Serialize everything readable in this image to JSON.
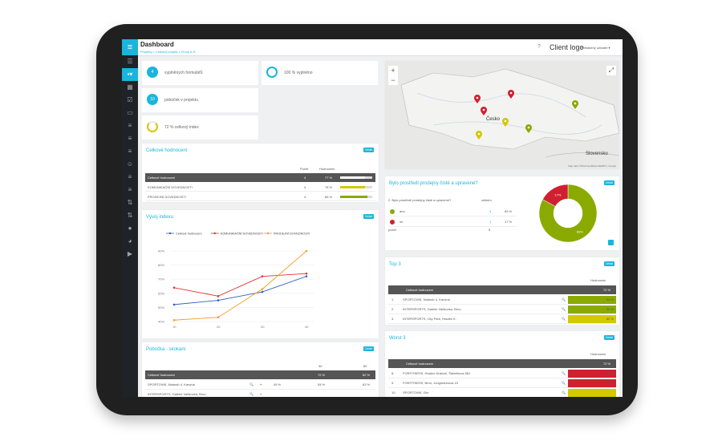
{
  "header": {
    "title": "Dashboard",
    "breadcrumb": "Projekty > Celkový projekt > Firmy A.S.",
    "help": "?",
    "logo": "Client logo",
    "user": "Přihlášený uživatel ▾"
  },
  "stats": [
    {
      "value": "4",
      "label": "vyplněných formulářů"
    },
    {
      "value": "",
      "label": "100 % vyplněno"
    },
    {
      "value": "10",
      "label": "poboček v projektu"
    },
    {
      "value": "",
      "label": "72 % celkový index"
    }
  ],
  "overall": {
    "title": "Celkové hodnocení",
    "detail": "Detail",
    "col_count": "Počet",
    "col_score": "Hodnocení",
    "rows": [
      {
        "label": "Celkové hodnocení",
        "count": "4",
        "pct": "77 %",
        "fill": 0.77,
        "color": "#ffffff"
      },
      {
        "label": "KOMUNIKAČNÍ DOVEDNOSTI",
        "count": "4",
        "pct": "78 %",
        "fill": 0.78,
        "color": "#d4c800"
      },
      {
        "label": "PRODEJNÍ DOVEDNOSTI",
        "count": "4",
        "pct": "86 %",
        "fill": 0.86,
        "color": "#8aaa00"
      }
    ]
  },
  "index_chart": {
    "title": "Vývoj indexu",
    "detail": "Detail",
    "chart_data": {
      "type": "line",
      "x": [
        "10",
        "20",
        "30",
        "40"
      ],
      "ylim": [
        40,
        90
      ],
      "yticks": [
        "40%",
        "50%",
        "60%",
        "70%",
        "80%",
        "90%"
      ],
      "series": [
        {
          "name": "Celkové hodnocení",
          "color": "#3060c0",
          "values": [
            52,
            55,
            61,
            72
          ]
        },
        {
          "name": "KOMUNIKAČNÍ DOVEDNOSTI",
          "color": "#e03030",
          "values": [
            64,
            58,
            72,
            74
          ]
        },
        {
          "name": "PRODEJNÍ DOVEDNOSTI",
          "color": "#f0a020",
          "values": [
            41,
            43,
            63,
            90
          ]
        }
      ]
    }
  },
  "branches": {
    "title": "Pobočka - skokani",
    "detail": "Detail",
    "cols": [
      "40",
      "80"
    ],
    "head": {
      "label": "Celkové hodnocení",
      "v1": "72 %",
      "v2": "62 %"
    },
    "rows": [
      {
        "label": "SPORTOVNÍ, Nádraží 4, Karviná",
        "delta": "49 %",
        "v1": "54 %",
        "v2": "63 %"
      },
      {
        "label": "INTERSPORTS, Galerie Vaňkovka, Brno",
        "delta": "",
        "v1": "",
        "v2": ""
      }
    ]
  },
  "map": {
    "label_cz": "Česko",
    "label_sk": "Slovensko",
    "zoom_in": "+",
    "zoom_out": "−",
    "fullscreen": "⤢",
    "attribution": "Map data ©2019 GeoBasis-DE/BKG, Google"
  },
  "clean": {
    "title": "Bylo prostředí prodejny čisté a upravené?",
    "detail": "Detail",
    "question": "2. Bylo prostředí prodejny čisté a upravené?",
    "col_total": "celkem",
    "rows": [
      {
        "label": "ano",
        "count": "4",
        "pct": "83 %",
        "color": "#8aaa00"
      },
      {
        "label": "ne",
        "count": "1",
        "pct": "17 %",
        "color": "#d02030"
      }
    ],
    "sum_label": "počet",
    "sum_value": "5",
    "chart_data": {
      "type": "pie",
      "labels": [
        "ano",
        "ne"
      ],
      "values": [
        83,
        17
      ],
      "colors": [
        "#8aaa00",
        "#d02030"
      ],
      "slice_labels": [
        "83%",
        "17%"
      ]
    }
  },
  "top": {
    "title": "Top 3",
    "detail": "Detail",
    "col": "Hodnocení",
    "head": {
      "label": "Celkové hodnocení",
      "value": "72 %"
    },
    "rows": [
      {
        "n": "1.",
        "label": "SPORTOVNÍ, Nádraží 4, Karviná",
        "value": "94 %",
        "fill": 0.94,
        "color": "#8aaa00"
      },
      {
        "n": "2.",
        "label": "INTERSPORTS, Galerie Vaňkovka, Brno",
        "value": "90 %",
        "fill": 0.9,
        "color": "#8aaa00"
      },
      {
        "n": "3.",
        "label": "INTERSPORTS, City Park, Hradec K.",
        "value": "82 %",
        "fill": 0.82,
        "color": "#d4c800"
      }
    ]
  },
  "worst": {
    "title": "Worst 3",
    "detail": "Detail",
    "col": "Hodnocení",
    "head": {
      "label": "Celkové hodnocení",
      "value": "72 %"
    },
    "rows": [
      {
        "n": "8.",
        "label": "FORFITNESS, Hradec Králové, Šafaříkova 581",
        "value": "46 %",
        "fill": 0.46,
        "color": "#d02030"
      },
      {
        "n": "9.",
        "label": "FORFITNESS, Brno, Jungmannova 15",
        "value": "54 %",
        "fill": 0.54,
        "color": "#d02030"
      },
      {
        "n": "10.",
        "label": "SPORTOVNÍ, Zlín",
        "value": "",
        "fill": 0.5,
        "color": "#d4c800"
      }
    ]
  }
}
